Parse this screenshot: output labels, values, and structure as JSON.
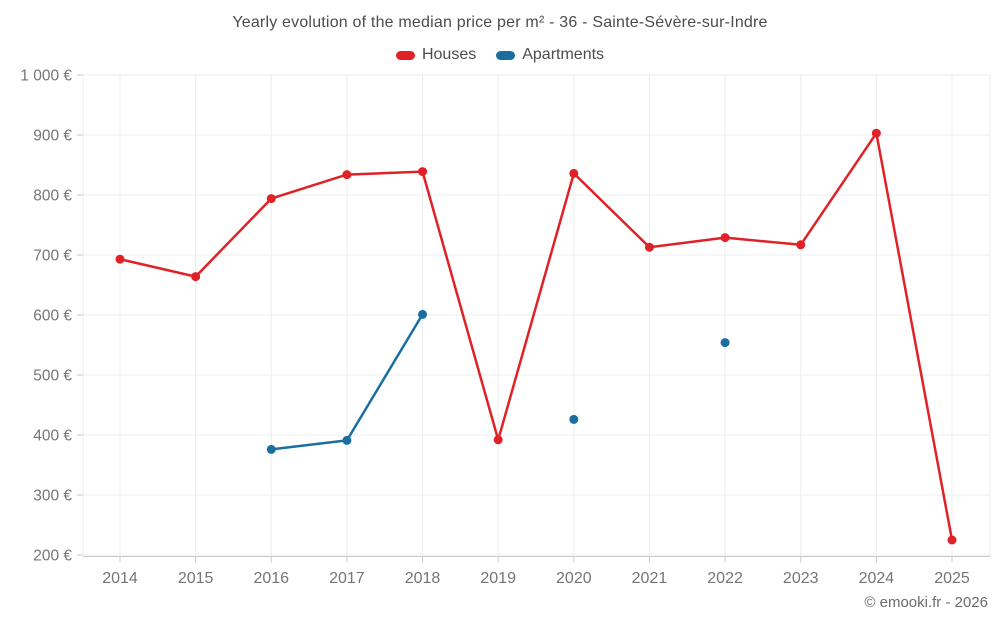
{
  "header": {
    "title": "Yearly evolution of the median price per m² - 36 - Sainte-Sévère-sur-Indre"
  },
  "footer": {
    "text": "© emooki.fr - 2026"
  },
  "chart_data": {
    "type": "line",
    "title": "Yearly evolution of the median price per m² - 36 - Sainte-Sévère-sur-Indre",
    "categories": [
      "2014",
      "2015",
      "2016",
      "2017",
      "2018",
      "2019",
      "2020",
      "2021",
      "2022",
      "2023",
      "2024",
      "2025"
    ],
    "series": [
      {
        "name": "Houses",
        "color": "#e02227",
        "values": [
          693,
          664,
          794,
          834,
          839,
          392,
          836,
          713,
          729,
          717,
          903,
          225
        ]
      },
      {
        "name": "Apartments",
        "color": "#1a6fa0",
        "values": [
          null,
          null,
          376,
          391,
          601,
          null,
          426,
          null,
          554,
          null,
          null,
          null
        ]
      }
    ],
    "xlabel": "",
    "ylabel": "",
    "ylim": [
      200,
      1000
    ],
    "y_ticks": [
      {
        "value": 200,
        "label": "200 €"
      },
      {
        "value": 300,
        "label": "300 €"
      },
      {
        "value": 400,
        "label": "400 €"
      },
      {
        "value": 500,
        "label": "500 €"
      },
      {
        "value": 600,
        "label": "600 €"
      },
      {
        "value": 700,
        "label": "700 €"
      },
      {
        "value": 800,
        "label": "800 €"
      },
      {
        "value": 900,
        "label": "900 €"
      },
      {
        "value": 1000,
        "label": "1 000 €"
      }
    ],
    "grid": "on",
    "legend_position": "top",
    "currency": "€"
  },
  "colors": {
    "grid_line": "#ececec",
    "axis_line": "#c9c9c9",
    "tick_mark": "#c9c9c9",
    "tick_text": "#757575",
    "title_text": "#4c4c4c",
    "background": "#ffffff"
  }
}
